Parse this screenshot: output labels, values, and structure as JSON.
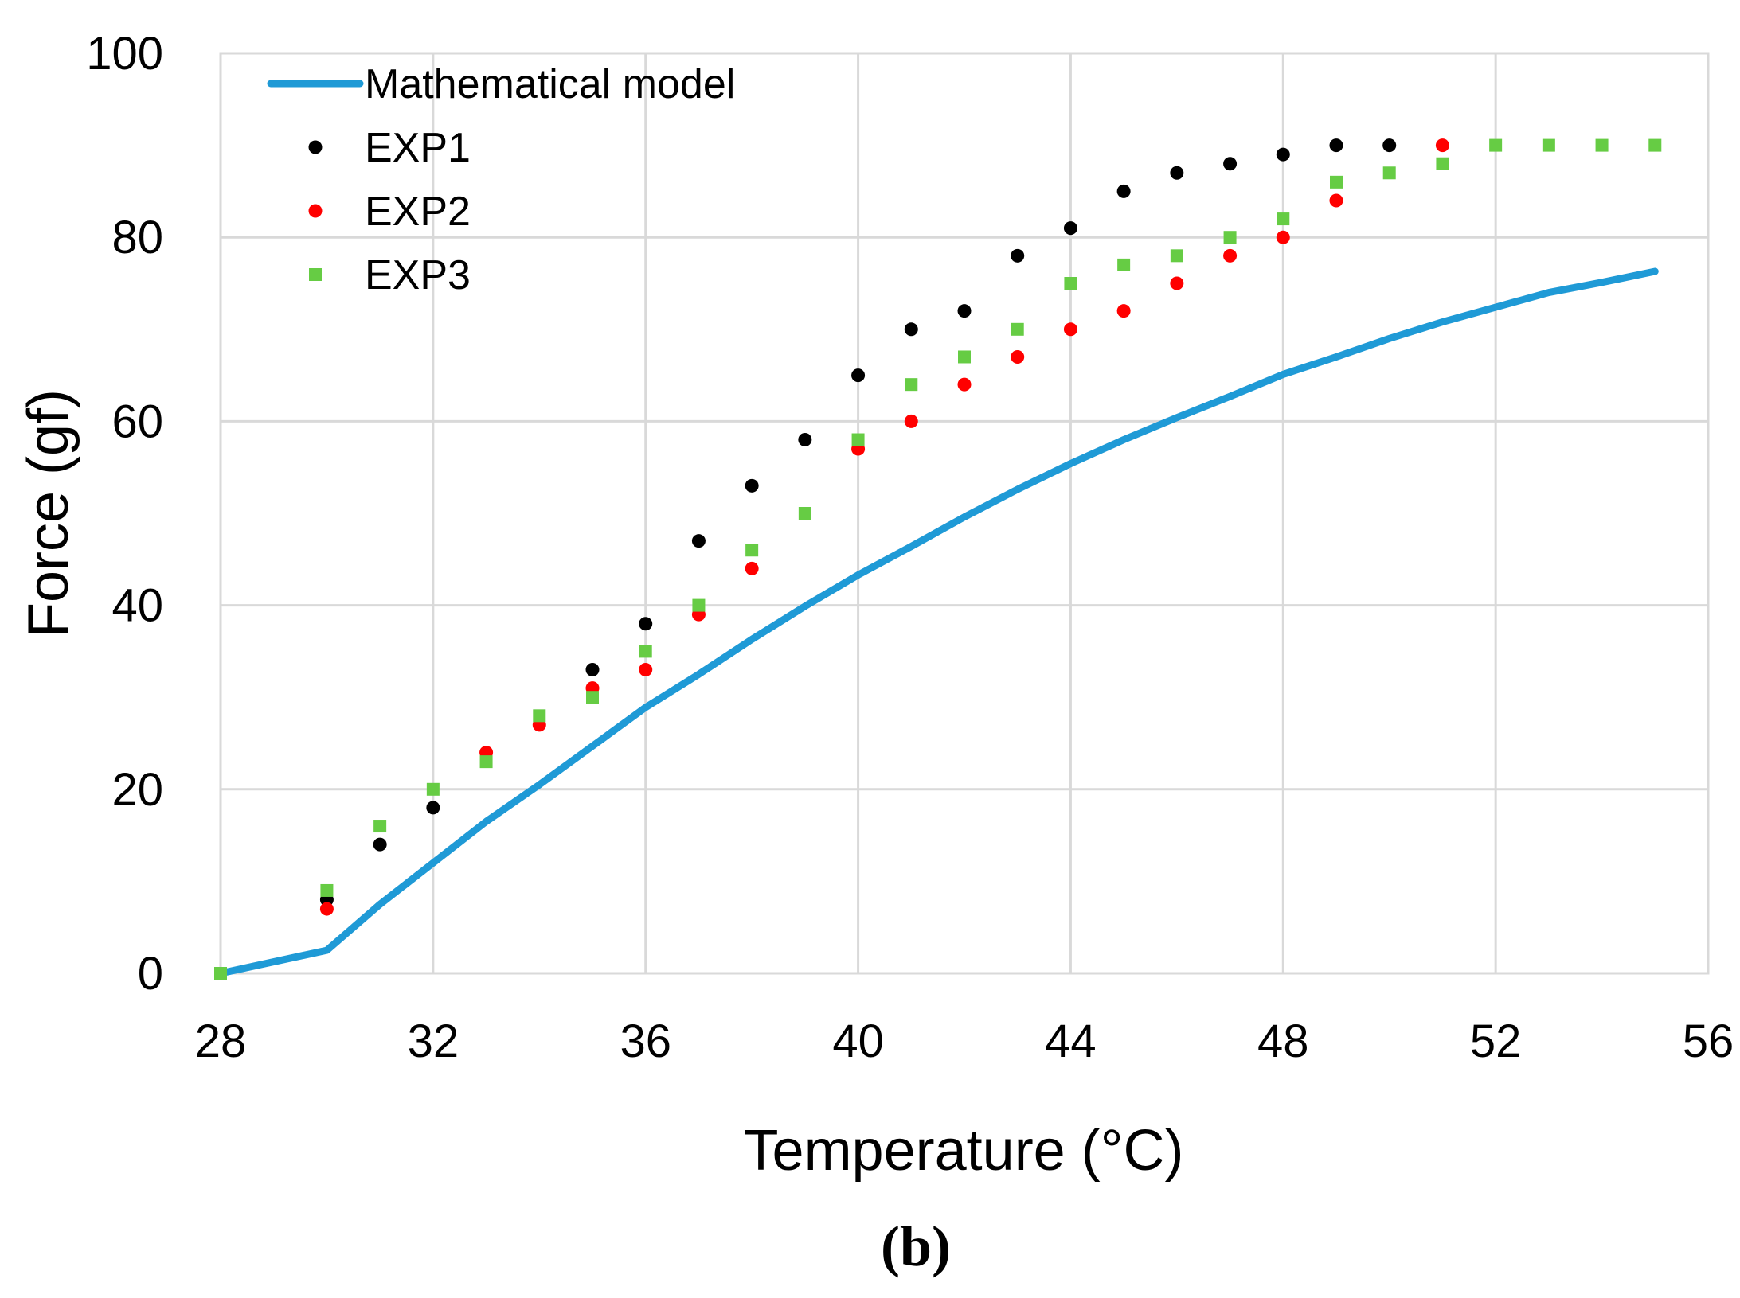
{
  "chart_data": {
    "type": "line",
    "title": "",
    "panel_label": "(b)",
    "xlabel": "Temperature (°C)",
    "ylabel": "Force (gf)",
    "xlim": [
      28,
      56
    ],
    "ylim": [
      0,
      100
    ],
    "xticks": [
      28,
      32,
      36,
      40,
      44,
      48,
      52,
      56
    ],
    "yticks": [
      0,
      20,
      40,
      60,
      80,
      100
    ],
    "grid": true,
    "legend_position": "top-left",
    "series": [
      {
        "name": "Mathematical model",
        "kind": "line",
        "color": "#1f9ad6",
        "x": [
          28,
          30,
          31,
          32,
          33,
          34,
          35,
          36,
          37,
          38,
          39,
          40,
          41,
          42,
          43,
          44,
          45,
          46,
          47,
          48,
          49,
          50,
          51,
          52,
          53,
          54,
          55
        ],
        "y": [
          0,
          2.5,
          7.5,
          12,
          16.5,
          20.5,
          24.7,
          28.9,
          32.5,
          36.3,
          39.9,
          43.3,
          46.4,
          49.6,
          52.6,
          55.4,
          58,
          60.4,
          62.7,
          65.1,
          67,
          69,
          70.8,
          72.4,
          74,
          75.1,
          76.3
        ]
      },
      {
        "name": "EXP1",
        "kind": "circle",
        "color": "#000000",
        "x": [
          30,
          31,
          32,
          35,
          36,
          37,
          38,
          39,
          40,
          41,
          42,
          43,
          44,
          45,
          46,
          47,
          48,
          49,
          50
        ],
        "y": [
          8,
          14,
          18,
          33,
          38,
          47,
          53,
          58,
          65,
          70,
          72,
          78,
          81,
          85,
          87,
          88,
          89,
          90,
          90
        ]
      },
      {
        "name": "EXP2",
        "kind": "circle",
        "color": "#ff0000",
        "x": [
          30,
          33,
          34,
          35,
          36,
          37,
          38,
          40,
          41,
          42,
          43,
          44,
          45,
          46,
          47,
          48,
          49,
          51
        ],
        "y": [
          7,
          24,
          27,
          31,
          33,
          39,
          44,
          57,
          60,
          64,
          67,
          70,
          72,
          75,
          78,
          80,
          84,
          90
        ]
      },
      {
        "name": "EXP3",
        "kind": "square",
        "color": "#66cc44",
        "x": [
          28,
          30,
          31,
          32,
          33,
          34,
          35,
          36,
          37,
          38,
          39,
          40,
          41,
          42,
          43,
          44,
          45,
          46,
          47,
          48,
          49,
          50,
          51,
          52,
          53,
          54,
          55
        ],
        "y": [
          0,
          9,
          16,
          20,
          23,
          28,
          30,
          35,
          40,
          46,
          50,
          58,
          64,
          67,
          70,
          75,
          77,
          78,
          80,
          82,
          86,
          87,
          88,
          90,
          90,
          90,
          90
        ]
      }
    ]
  }
}
